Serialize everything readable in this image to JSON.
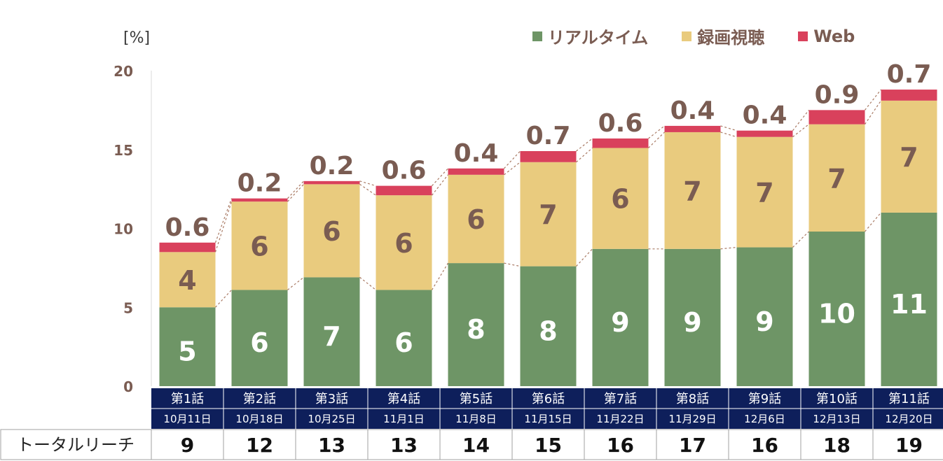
{
  "chart_data": {
    "type": "bar",
    "stacked": true,
    "unit_label": "[%]",
    "ylim": [
      0,
      20
    ],
    "yticks": [
      0,
      5,
      10,
      15,
      20
    ],
    "categories": [
      "第1話",
      "第2話",
      "第3話",
      "第4話",
      "第5話",
      "第6話",
      "第7話",
      "第8話",
      "第9話",
      "第10話",
      "第11話"
    ],
    "dates": [
      "10月11日",
      "10月18日",
      "10月25日",
      "11月1日",
      "11月8日",
      "11月15日",
      "11月22日",
      "11月29日",
      "12月6日",
      "12月13日",
      "12月20日"
    ],
    "series": [
      {
        "name": "リアルタイム",
        "color": "#6e9566",
        "values": [
          5,
          6,
          7,
          6,
          8,
          8,
          9,
          9,
          9,
          10,
          11
        ],
        "heights": [
          5.0,
          6.1,
          6.9,
          6.1,
          7.8,
          7.6,
          8.7,
          8.7,
          8.8,
          9.8,
          11.0
        ]
      },
      {
        "name": "録画視聴",
        "color": "#e9cb7e",
        "values": [
          4,
          6,
          6,
          6,
          6,
          7,
          6,
          7,
          7,
          7,
          7
        ],
        "heights": [
          3.5,
          5.6,
          5.9,
          6.0,
          5.6,
          6.6,
          6.4,
          7.4,
          7.0,
          6.8,
          7.1
        ]
      },
      {
        "name": "Web",
        "color": "#d9415c",
        "values": [
          0.6,
          0.2,
          0.2,
          0.6,
          0.4,
          0.7,
          0.6,
          0.4,
          0.4,
          0.9,
          0.7
        ],
        "heights": [
          0.6,
          0.2,
          0.2,
          0.6,
          0.4,
          0.7,
          0.6,
          0.4,
          0.4,
          0.9,
          0.7
        ]
      }
    ],
    "row_label": "トータルリーチ",
    "totals": [
      9,
      12,
      13,
      13,
      14,
      15,
      16,
      17,
      16,
      18,
      19
    ],
    "colors": {
      "header_bg": "#0e1f5b",
      "header_text": "#ffffff",
      "value_text_dark": "#7a5c52",
      "axis_text": "#7a5c52",
      "connector": "#a97a64"
    }
  }
}
